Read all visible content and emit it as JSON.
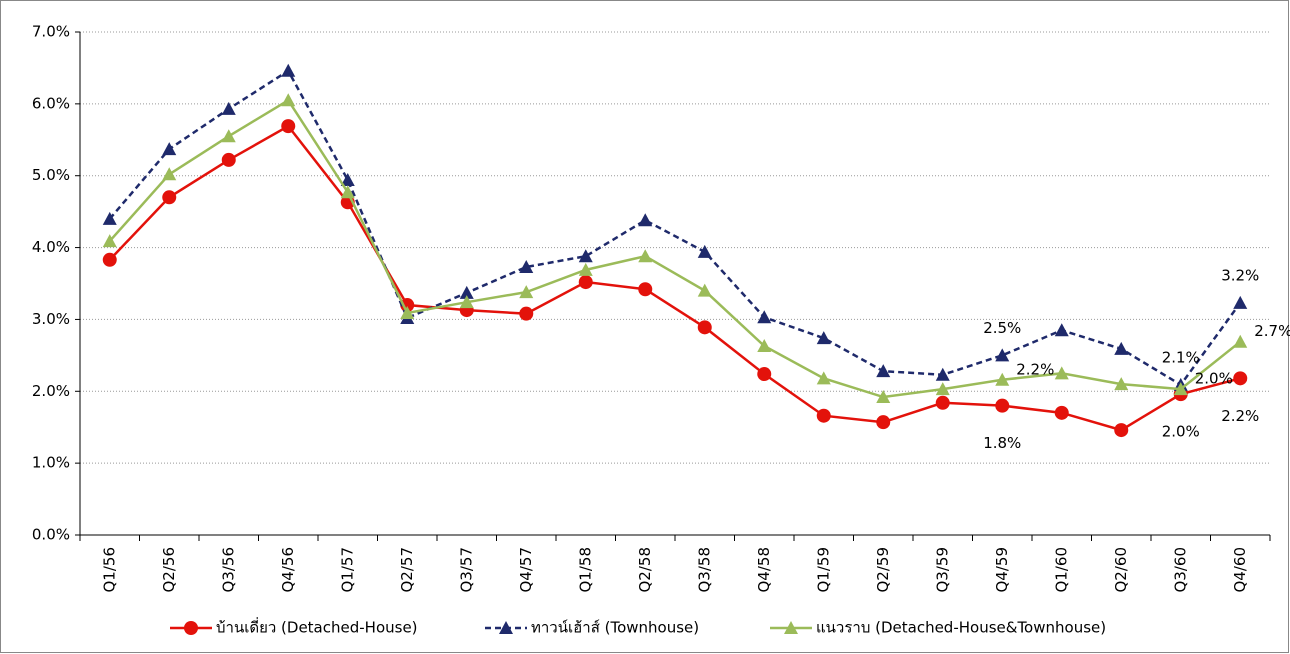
{
  "chart_data": {
    "type": "line",
    "categories": [
      "Q1/56",
      "Q2/56",
      "Q3/56",
      "Q4/56",
      "Q1/57",
      "Q2/57",
      "Q3/57",
      "Q4/57",
      "Q1/58",
      "Q2/58",
      "Q3/58",
      "Q4/58",
      "Q1/59",
      "Q2/59",
      "Q3/59",
      "Q4/59",
      "Q1/60",
      "Q2/60",
      "Q3/60",
      "Q4/60"
    ],
    "ylim": [
      0,
      7
    ],
    "yticks": [
      {
        "value": 0,
        "label": "0.0%"
      },
      {
        "value": 1,
        "label": "1.0%"
      },
      {
        "value": 2,
        "label": "2.0%"
      },
      {
        "value": 3,
        "label": "3.0%"
      },
      {
        "value": 4,
        "label": "4.0%"
      },
      {
        "value": 5,
        "label": "5.0%"
      },
      {
        "value": 6,
        "label": "6.0%"
      },
      {
        "value": 7,
        "label": "7.0%"
      }
    ],
    "grid": true,
    "legend": "bottom",
    "series": [
      {
        "name": "บ้านเดี่ยว (Detached-House)",
        "color": "#e3120b",
        "marker": "circle",
        "dash": false,
        "values": [
          3.83,
          4.7,
          5.22,
          5.69,
          4.63,
          3.2,
          3.13,
          3.08,
          3.52,
          3.42,
          2.89,
          2.24,
          1.66,
          1.57,
          1.84,
          1.8,
          1.7,
          1.46,
          1.96,
          2.18
        ],
        "value_labels": [
          null,
          null,
          null,
          null,
          null,
          null,
          null,
          null,
          null,
          null,
          null,
          null,
          null,
          null,
          null,
          "1.8%",
          null,
          null,
          "2.0%",
          "2.2%"
        ]
      },
      {
        "name": "ทาวน์เฮ้าส์ (Townhouse)",
        "color": "#1f2a6b",
        "marker": "triangle",
        "dash": true,
        "values": [
          4.4,
          5.37,
          5.93,
          6.46,
          4.94,
          3.02,
          3.37,
          3.73,
          3.88,
          4.38,
          3.94,
          3.03,
          2.74,
          2.28,
          2.23,
          2.5,
          2.85,
          2.59,
          2.09,
          3.23
        ],
        "value_labels": [
          null,
          null,
          null,
          null,
          null,
          null,
          null,
          null,
          null,
          null,
          null,
          null,
          null,
          null,
          null,
          "2.5%",
          null,
          null,
          "2.1%",
          "3.2%"
        ]
      },
      {
        "name": "แนวราบ (Detached-House&Townhouse)",
        "color": "#9bbb59",
        "marker": "triangle",
        "dash": false,
        "values": [
          4.09,
          5.02,
          5.55,
          6.05,
          4.77,
          3.09,
          3.24,
          3.38,
          3.69,
          3.88,
          3.4,
          2.63,
          2.18,
          1.92,
          2.03,
          2.16,
          2.25,
          2.1,
          2.03,
          2.69
        ],
        "value_labels": [
          null,
          null,
          null,
          null,
          null,
          null,
          null,
          null,
          null,
          null,
          null,
          null,
          null,
          null,
          null,
          "2.2%",
          null,
          null,
          "2.0%",
          "2.7%"
        ]
      }
    ]
  }
}
